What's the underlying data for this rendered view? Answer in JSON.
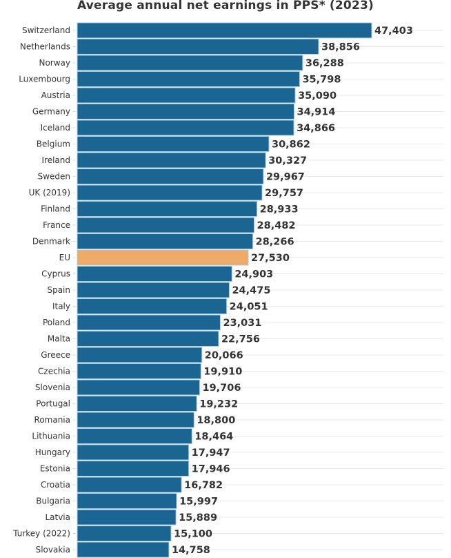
{
  "chart_data": {
    "type": "bar",
    "orientation": "horizontal",
    "title": "Average annual net earnings in PPS* (2023)",
    "xlabel": "",
    "ylabel": "",
    "xlim": [
      0,
      52000
    ],
    "grid": true,
    "legend": "none",
    "colors": {
      "default": "#1b6592",
      "highlight": "#eeaa67",
      "bar_border": "#a9cde6"
    },
    "highlight_category": "EU",
    "categories": [
      "Switzerland",
      "Netherlands",
      "Norway",
      "Luxembourg",
      "Austria",
      "Germany",
      "Iceland",
      "Belgium",
      "Ireland",
      "Sweden",
      "UK (2019)",
      "Finland",
      "France",
      "Denmark",
      "EU",
      "Cyprus",
      "Spain",
      "Italy",
      "Poland",
      "Malta",
      "Greece",
      "Czechia",
      "Slovenia",
      "Portugal",
      "Romania",
      "Lithuania",
      "Hungary",
      "Estonia",
      "Croatia",
      "Bulgaria",
      "Latvia",
      "Turkey (2022)",
      "Slovakia"
    ],
    "values": [
      47403,
      38856,
      36288,
      35798,
      35090,
      34914,
      34866,
      30862,
      30327,
      29967,
      29757,
      28933,
      28482,
      28266,
      27530,
      24903,
      24475,
      24051,
      23031,
      22756,
      20066,
      19910,
      19706,
      19232,
      18800,
      18464,
      17947,
      17946,
      16782,
      15997,
      15889,
      15100,
      14758
    ],
    "value_labels": [
      "47,403",
      "38,856",
      "36,288",
      "35,798",
      "35,090",
      "34,914",
      "34,866",
      "30,862",
      "30,327",
      "29,967",
      "29,757",
      "28,933",
      "28,482",
      "28,266",
      "27,530",
      "24,903",
      "24,475",
      "24,051",
      "23,031",
      "22,756",
      "20,066",
      "19,910",
      "19,706",
      "19,232",
      "18,800",
      "18,464",
      "17,947",
      "17,946",
      "16,782",
      "15,997",
      "15,889",
      "15,100",
      "14,758"
    ]
  }
}
